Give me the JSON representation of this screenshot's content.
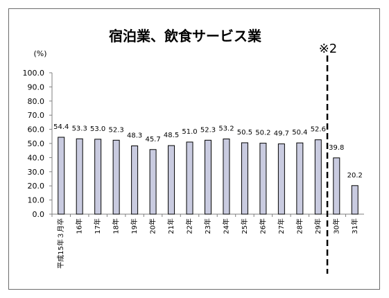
{
  "chart_data": {
    "type": "bar",
    "title": "宿泊業、飲食サービス業",
    "ylabel": "(%)",
    "xlabel": "",
    "ylim": [
      0,
      100
    ],
    "y_ticks": [
      "100.0",
      "90.0",
      "80.0",
      "70.0",
      "60.0",
      "50.0",
      "40.0",
      "30.0",
      "20.0",
      "10.0",
      "0.0"
    ],
    "grid": false,
    "categories": [
      "平成15年３月卒",
      "16年",
      "17年",
      "18年",
      "19年",
      "20年",
      "21年",
      "22年",
      "23年",
      "24年",
      "25年",
      "26年",
      "27年",
      "28年",
      "29年",
      "30年",
      "31年"
    ],
    "values": [
      54.4,
      53.3,
      53.0,
      52.3,
      48.3,
      45.7,
      48.5,
      51.0,
      52.3,
      53.2,
      50.5,
      50.2,
      49.7,
      50.4,
      52.6,
      39.8,
      20.2
    ],
    "value_labels": [
      "54.4",
      "53.3",
      "53.0",
      "52.3",
      "48.3",
      "45.7",
      "48.5",
      "51.0",
      "52.3",
      "53.2",
      "50.5",
      "50.2",
      "49.7",
      "50.4",
      "52.6",
      "39.8",
      "20.2"
    ],
    "bar_color": "#c9cbe0",
    "bar_edge_color": "#000000",
    "annotation": {
      "text": "※2",
      "divider_after_category": "29年",
      "style": "dashed"
    }
  }
}
